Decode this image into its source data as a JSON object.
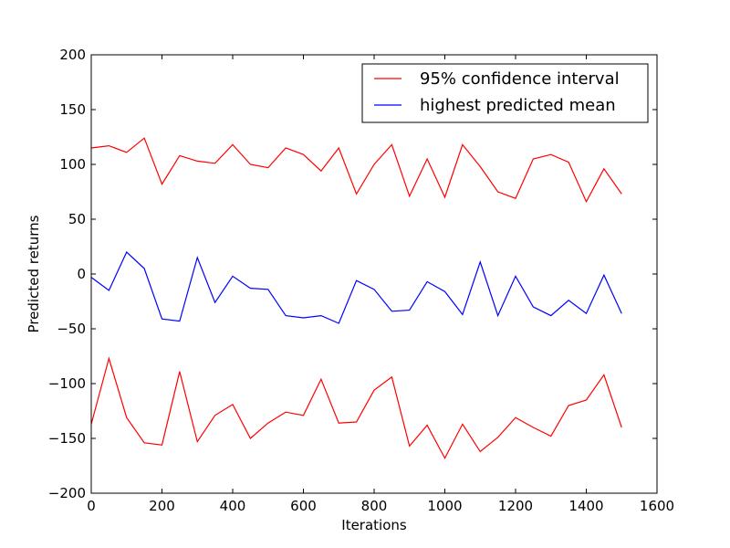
{
  "chart_data": {
    "type": "line",
    "title": "",
    "xlabel": "Iterations",
    "ylabel": "Predicted returns",
    "xlim": [
      0,
      1600
    ],
    "ylim": [
      -200,
      200
    ],
    "xticks": [
      0,
      200,
      400,
      600,
      800,
      1000,
      1200,
      1400,
      1600
    ],
    "yticks": [
      -200,
      -150,
      -100,
      -50,
      0,
      50,
      100,
      150,
      200
    ],
    "grid": false,
    "legend_position": "top-right",
    "x": [
      0,
      50,
      100,
      150,
      200,
      250,
      300,
      350,
      400,
      450,
      500,
      550,
      600,
      650,
      700,
      750,
      800,
      850,
      900,
      950,
      1000,
      1050,
      1100,
      1150,
      1200,
      1250,
      1300,
      1350,
      1400,
      1450,
      1500
    ],
    "series": [
      {
        "name": "95% confidence interval",
        "role": "upper",
        "color": "#ff0000",
        "values": [
          115,
          117,
          111,
          124,
          82,
          108,
          103,
          101,
          118,
          100,
          97,
          115,
          109,
          94,
          115,
          73,
          100,
          118,
          71,
          105,
          70,
          118,
          98,
          75,
          69,
          105,
          109,
          102,
          66,
          96,
          73
        ]
      },
      {
        "name": "highest predicted mean",
        "role": "mean",
        "color": "#0000ff",
        "values": [
          -3,
          -15,
          20,
          5,
          -41,
          -43,
          15,
          -26,
          -2,
          -13,
          -14,
          -38,
          -40,
          -38,
          -45,
          -6,
          -14,
          -34,
          -33,
          -7,
          -16,
          -37,
          11,
          -38,
          -2,
          -30,
          -38,
          -24,
          -36,
          -1,
          -36
        ]
      },
      {
        "name": "",
        "role": "lower",
        "color": "#ff0000",
        "values": [
          -137,
          -77,
          -131,
          -154,
          -156,
          -89,
          -153,
          -129,
          -119,
          -150,
          -136,
          -126,
          -129,
          -96,
          -136,
          -135,
          -106,
          -94,
          -157,
          -138,
          -168,
          -137,
          -162,
          -149,
          -131,
          -140,
          -148,
          -120,
          -115,
          -92,
          -140
        ]
      }
    ]
  }
}
